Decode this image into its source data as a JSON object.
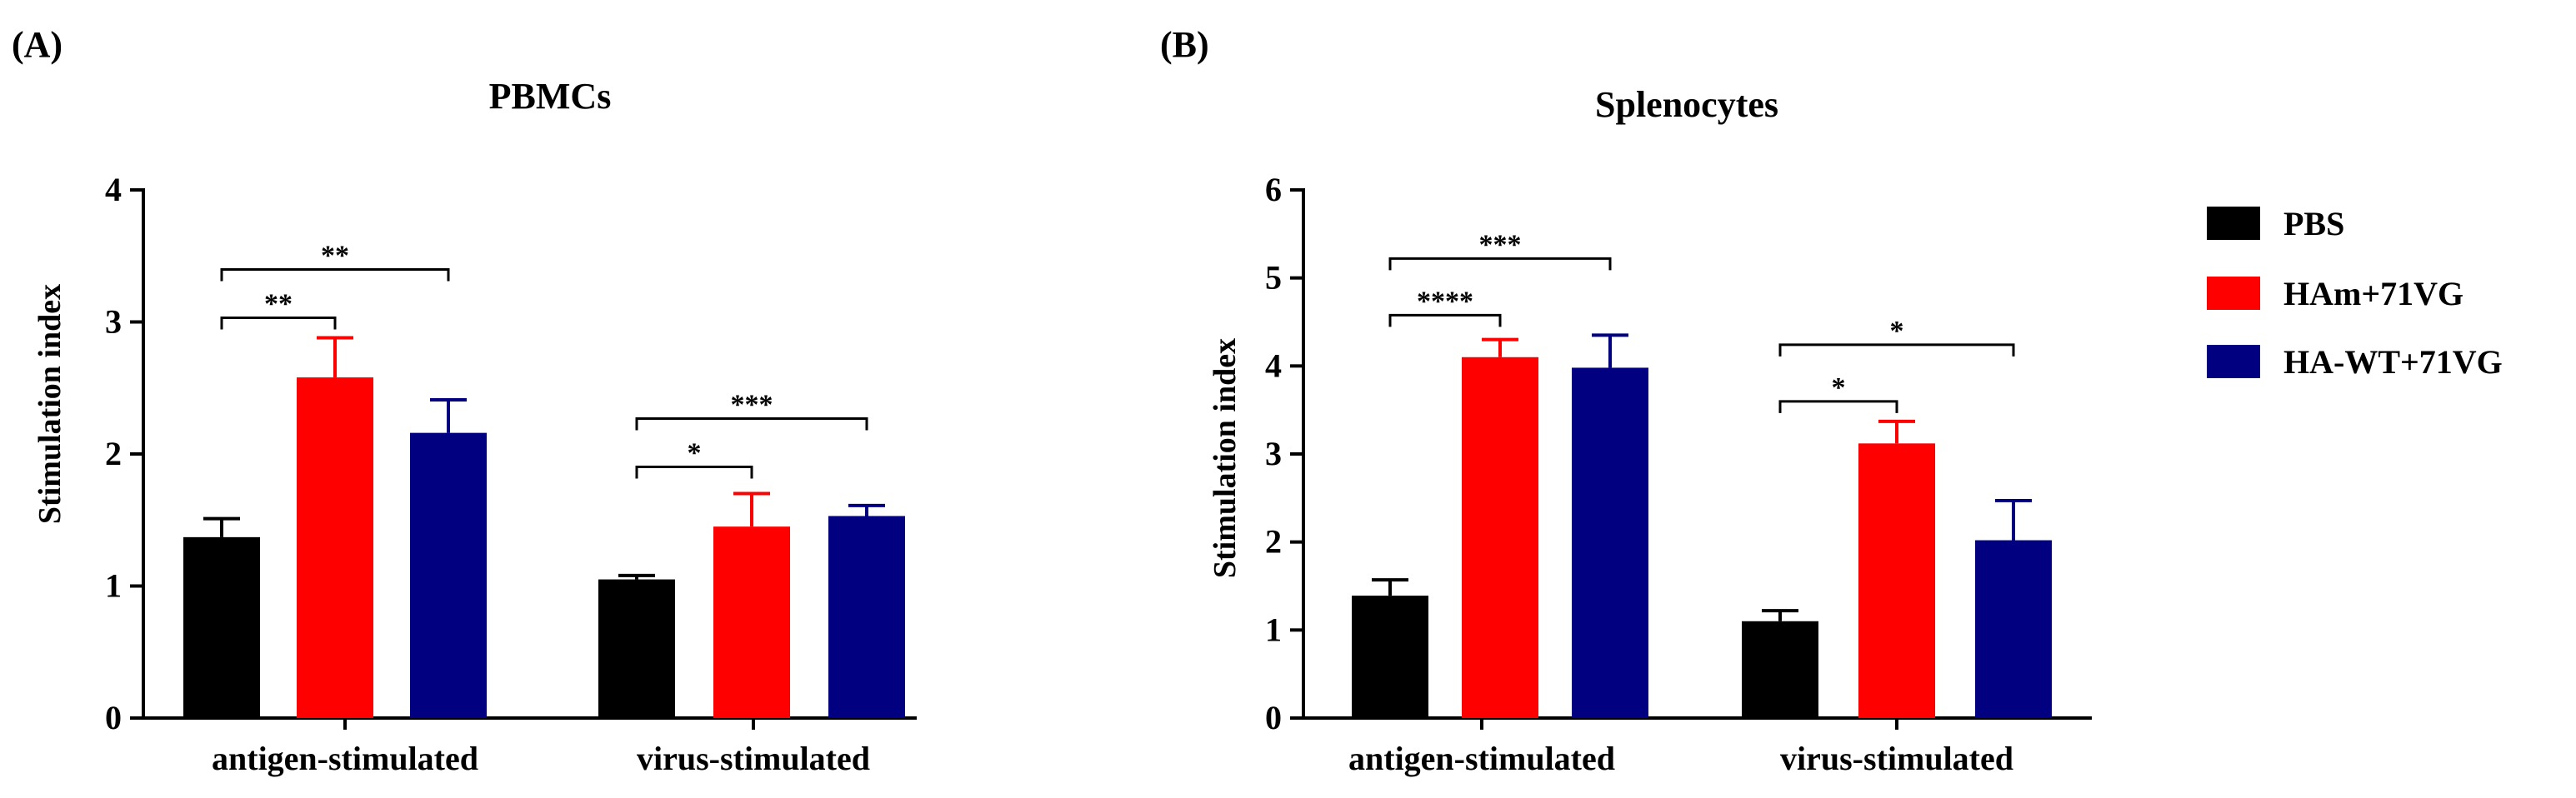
{
  "chart_data": [
    {
      "panel_label": "(A)",
      "type": "bar",
      "title": "PBMCs",
      "xlabel": "",
      "ylabel": "Stimulation index",
      "ylim": [
        0,
        4
      ],
      "yticks": [
        "0",
        "1",
        "2",
        "3",
        "4"
      ],
      "categories": [
        "antigen-stimulated",
        "virus-stimulated"
      ],
      "series": [
        {
          "name": "PBS",
          "values": [
            1.37,
            1.05
          ],
          "errors": [
            0.14,
            0.03
          ]
        },
        {
          "name": "HAm+71VG",
          "values": [
            2.58,
            1.45
          ],
          "errors": [
            0.3,
            0.25
          ]
        },
        {
          "name": "HA-WT+71VG",
          "values": [
            2.16,
            1.53
          ],
          "errors": [
            0.25,
            0.08
          ]
        }
      ],
      "significance": [
        {
          "category": 0,
          "from": 0,
          "to": 1,
          "label": "**"
        },
        {
          "category": 0,
          "from": 0,
          "to": 2,
          "label": "**"
        },
        {
          "category": 1,
          "from": 0,
          "to": 1,
          "label": "*"
        },
        {
          "category": 1,
          "from": 0,
          "to": 2,
          "label": "***"
        }
      ]
    },
    {
      "panel_label": "(B)",
      "type": "bar",
      "title": "Splenocytes",
      "xlabel": "",
      "ylabel": "Stimulation index",
      "ylim": [
        0,
        6
      ],
      "yticks": [
        "0",
        "1",
        "2",
        "3",
        "4",
        "5",
        "6"
      ],
      "categories": [
        "antigen-stimulated",
        "virus-stimulated"
      ],
      "series": [
        {
          "name": "PBS",
          "values": [
            1.39,
            1.1
          ],
          "errors": [
            0.18,
            0.12
          ]
        },
        {
          "name": "HAm+71VG",
          "values": [
            4.1,
            3.12
          ],
          "errors": [
            0.2,
            0.25
          ]
        },
        {
          "name": "HA-WT+71VG",
          "values": [
            3.98,
            2.02
          ],
          "errors": [
            0.37,
            0.45
          ]
        }
      ],
      "significance": [
        {
          "category": 0,
          "from": 0,
          "to": 1,
          "label": "****"
        },
        {
          "category": 0,
          "from": 0,
          "to": 2,
          "label": "***"
        },
        {
          "category": 1,
          "from": 0,
          "to": 1,
          "label": "*"
        },
        {
          "category": 1,
          "from": 0,
          "to": 2,
          "label": "*"
        }
      ]
    }
  ],
  "legend": {
    "items": [
      {
        "label": "PBS",
        "color": "#000000"
      },
      {
        "label": "HAm+71VG",
        "color": "#ff0000"
      },
      {
        "label": "HA-WT+71VG",
        "color": "#000080"
      }
    ]
  }
}
